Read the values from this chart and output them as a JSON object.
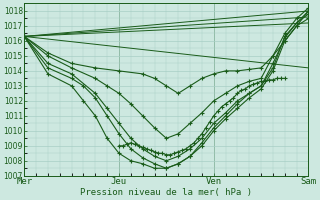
{
  "xlabel": "Pression niveau de la mer( hPa )",
  "ylim": [
    1007,
    1018.5
  ],
  "xlim": [
    0,
    72
  ],
  "yticks": [
    1007,
    1008,
    1009,
    1010,
    1011,
    1012,
    1013,
    1014,
    1015,
    1016,
    1017,
    1018
  ],
  "xtick_positions": [
    0,
    24,
    48,
    72
  ],
  "xtick_labels": [
    "Mer",
    "Jeu",
    "Ven",
    "Sam"
  ],
  "background_color": "#cde8e0",
  "grid_color": "#a8cfc5",
  "line_color": "#1a5c1a",
  "lines_simple": [
    {
      "x": [
        0,
        72
      ],
      "y": [
        1016.3,
        1014.2
      ]
    },
    {
      "x": [
        0,
        72
      ],
      "y": [
        1016.3,
        1017.2
      ]
    },
    {
      "x": [
        0,
        72
      ],
      "y": [
        1016.3,
        1018.0
      ]
    },
    {
      "x": [
        0,
        72
      ],
      "y": [
        1016.3,
        1017.6
      ]
    }
  ],
  "lines_curved": [
    {
      "x": [
        0,
        6,
        12,
        18,
        24,
        30,
        33,
        36,
        39,
        42,
        45,
        48,
        51,
        54,
        57,
        60,
        63,
        66,
        69,
        72
      ],
      "y": [
        1016.3,
        1015.2,
        1014.5,
        1014.2,
        1014.0,
        1013.8,
        1013.5,
        1013.0,
        1012.5,
        1013.0,
        1013.5,
        1013.8,
        1014.0,
        1014.0,
        1014.1,
        1014.2,
        1015.0,
        1016.0,
        1017.0,
        1018.0
      ],
      "marker": true,
      "ms": 2.5
    },
    {
      "x": [
        0,
        6,
        12,
        18,
        21,
        24,
        27,
        30,
        33,
        36,
        39,
        42,
        45,
        48,
        51,
        54,
        57,
        60,
        63,
        66,
        69,
        72
      ],
      "y": [
        1016.3,
        1015.0,
        1014.2,
        1013.5,
        1013.0,
        1012.5,
        1011.8,
        1011.0,
        1010.2,
        1009.5,
        1009.8,
        1010.5,
        1011.2,
        1012.0,
        1012.5,
        1013.0,
        1013.3,
        1013.5,
        1015.0,
        1016.5,
        1017.5,
        1018.2
      ],
      "marker": true,
      "ms": 2.5
    },
    {
      "x": [
        0,
        6,
        12,
        18,
        21,
        24,
        27,
        30,
        33,
        36,
        39,
        42,
        45,
        48,
        51,
        54,
        57,
        60,
        63,
        66,
        69,
        72
      ],
      "y": [
        1016.3,
        1014.5,
        1013.8,
        1012.5,
        1011.5,
        1010.5,
        1009.5,
        1008.8,
        1008.3,
        1008.0,
        1008.3,
        1008.8,
        1009.5,
        1010.5,
        1011.2,
        1012.0,
        1012.5,
        1013.0,
        1014.5,
        1016.2,
        1017.2,
        1018.0
      ],
      "marker": true,
      "ms": 2.5
    },
    {
      "x": [
        0,
        6,
        12,
        15,
        18,
        21,
        24,
        27,
        30,
        33,
        36,
        39,
        42,
        45,
        48,
        51,
        54,
        57,
        60,
        63,
        66,
        69,
        72
      ],
      "y": [
        1016.3,
        1014.2,
        1013.5,
        1013.0,
        1012.2,
        1011.0,
        1009.8,
        1008.8,
        1008.2,
        1007.8,
        1007.5,
        1007.8,
        1008.3,
        1009.0,
        1010.0,
        1010.8,
        1011.5,
        1012.2,
        1012.8,
        1014.0,
        1016.0,
        1017.0,
        1017.5
      ],
      "marker": true,
      "ms": 2.5
    },
    {
      "x": [
        0,
        6,
        12,
        15,
        18,
        21,
        24,
        27,
        30,
        33,
        36,
        39,
        42,
        45,
        48,
        51,
        54,
        57,
        60,
        63,
        66,
        69,
        72
      ],
      "y": [
        1016.3,
        1013.8,
        1013.0,
        1012.0,
        1011.0,
        1009.5,
        1008.5,
        1008.0,
        1007.8,
        1007.5,
        1007.5,
        1007.8,
        1008.3,
        1009.2,
        1010.2,
        1011.0,
        1011.8,
        1012.5,
        1013.0,
        1014.2,
        1016.3,
        1017.2,
        1017.8
      ],
      "marker": true,
      "ms": 2.5
    }
  ],
  "dense_segment": {
    "x": [
      24,
      25,
      26,
      27,
      28,
      29,
      30,
      31,
      32,
      33,
      34,
      35,
      36,
      37,
      38,
      39,
      40,
      41,
      42,
      43,
      44,
      45,
      46,
      47,
      48,
      49,
      50,
      51,
      52,
      53,
      54,
      55,
      56,
      57,
      58,
      59,
      60,
      61,
      62,
      63,
      64,
      65,
      66
    ],
    "y": [
      1009.0,
      1009.0,
      1009.1,
      1009.2,
      1009.1,
      1009.0,
      1008.9,
      1008.8,
      1008.7,
      1008.6,
      1008.5,
      1008.5,
      1008.4,
      1008.4,
      1008.5,
      1008.6,
      1008.7,
      1008.8,
      1009.0,
      1009.2,
      1009.5,
      1009.8,
      1010.2,
      1010.6,
      1011.0,
      1011.3,
      1011.6,
      1011.8,
      1012.0,
      1012.2,
      1012.5,
      1012.7,
      1012.8,
      1013.0,
      1013.1,
      1013.2,
      1013.3,
      1013.3,
      1013.4,
      1013.4,
      1013.5,
      1013.5,
      1013.5
    ]
  }
}
